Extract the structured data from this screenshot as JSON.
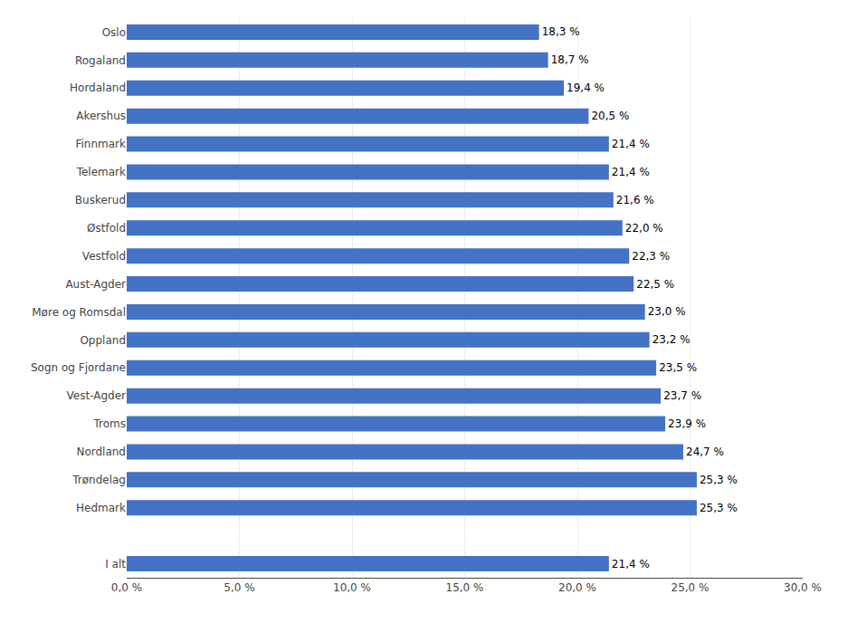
{
  "chart_data": {
    "type": "bar",
    "orientation": "horizontal",
    "categories": [
      "I alt",
      null,
      "Hedmark",
      "Trøndelag",
      "Nordland",
      "Troms",
      "Vest-Agder",
      "Sogn og Fjordane",
      "Oppland",
      "Møre og Romsdal",
      "Aust-Agder",
      "Vestfold",
      "Østfold",
      "Buskerud",
      "Telemark",
      "Finnmark",
      "Akershus",
      "Hordaland",
      "Rogaland",
      "Oslo"
    ],
    "values": [
      21.4,
      0,
      25.3,
      25.3,
      24.7,
      23.9,
      23.7,
      23.5,
      23.2,
      23.0,
      22.5,
      22.3,
      22.0,
      21.6,
      21.4,
      21.4,
      20.5,
      19.4,
      18.7,
      18.3
    ],
    "value_labels": [
      "21,4 %",
      null,
      "25,3 %",
      "25,3 %",
      "24,7 %",
      "23,9 %",
      "23,7 %",
      "23,5 %",
      "23,2 %",
      "23,0 %",
      "22,5 %",
      "22,3 %",
      "22,0 %",
      "21,6 %",
      "21,4 %",
      "21,4 %",
      "20,5 %",
      "19,4 %",
      "18,7 %",
      "18,3 %"
    ],
    "data_labels": true,
    "color": "#4472C4",
    "xlim": [
      0,
      30
    ],
    "xticks": [
      {
        "value": 0,
        "label": "0,0 %"
      },
      {
        "value": 5,
        "label": "5,0 %"
      },
      {
        "value": 10,
        "label": "10,0 %"
      },
      {
        "value": 15,
        "label": "15,0 %"
      },
      {
        "value": 20,
        "label": "20,0 %"
      },
      {
        "value": 25,
        "label": "25,0 %"
      },
      {
        "value": 30,
        "label": "30,0 %"
      }
    ],
    "grid": true
  }
}
